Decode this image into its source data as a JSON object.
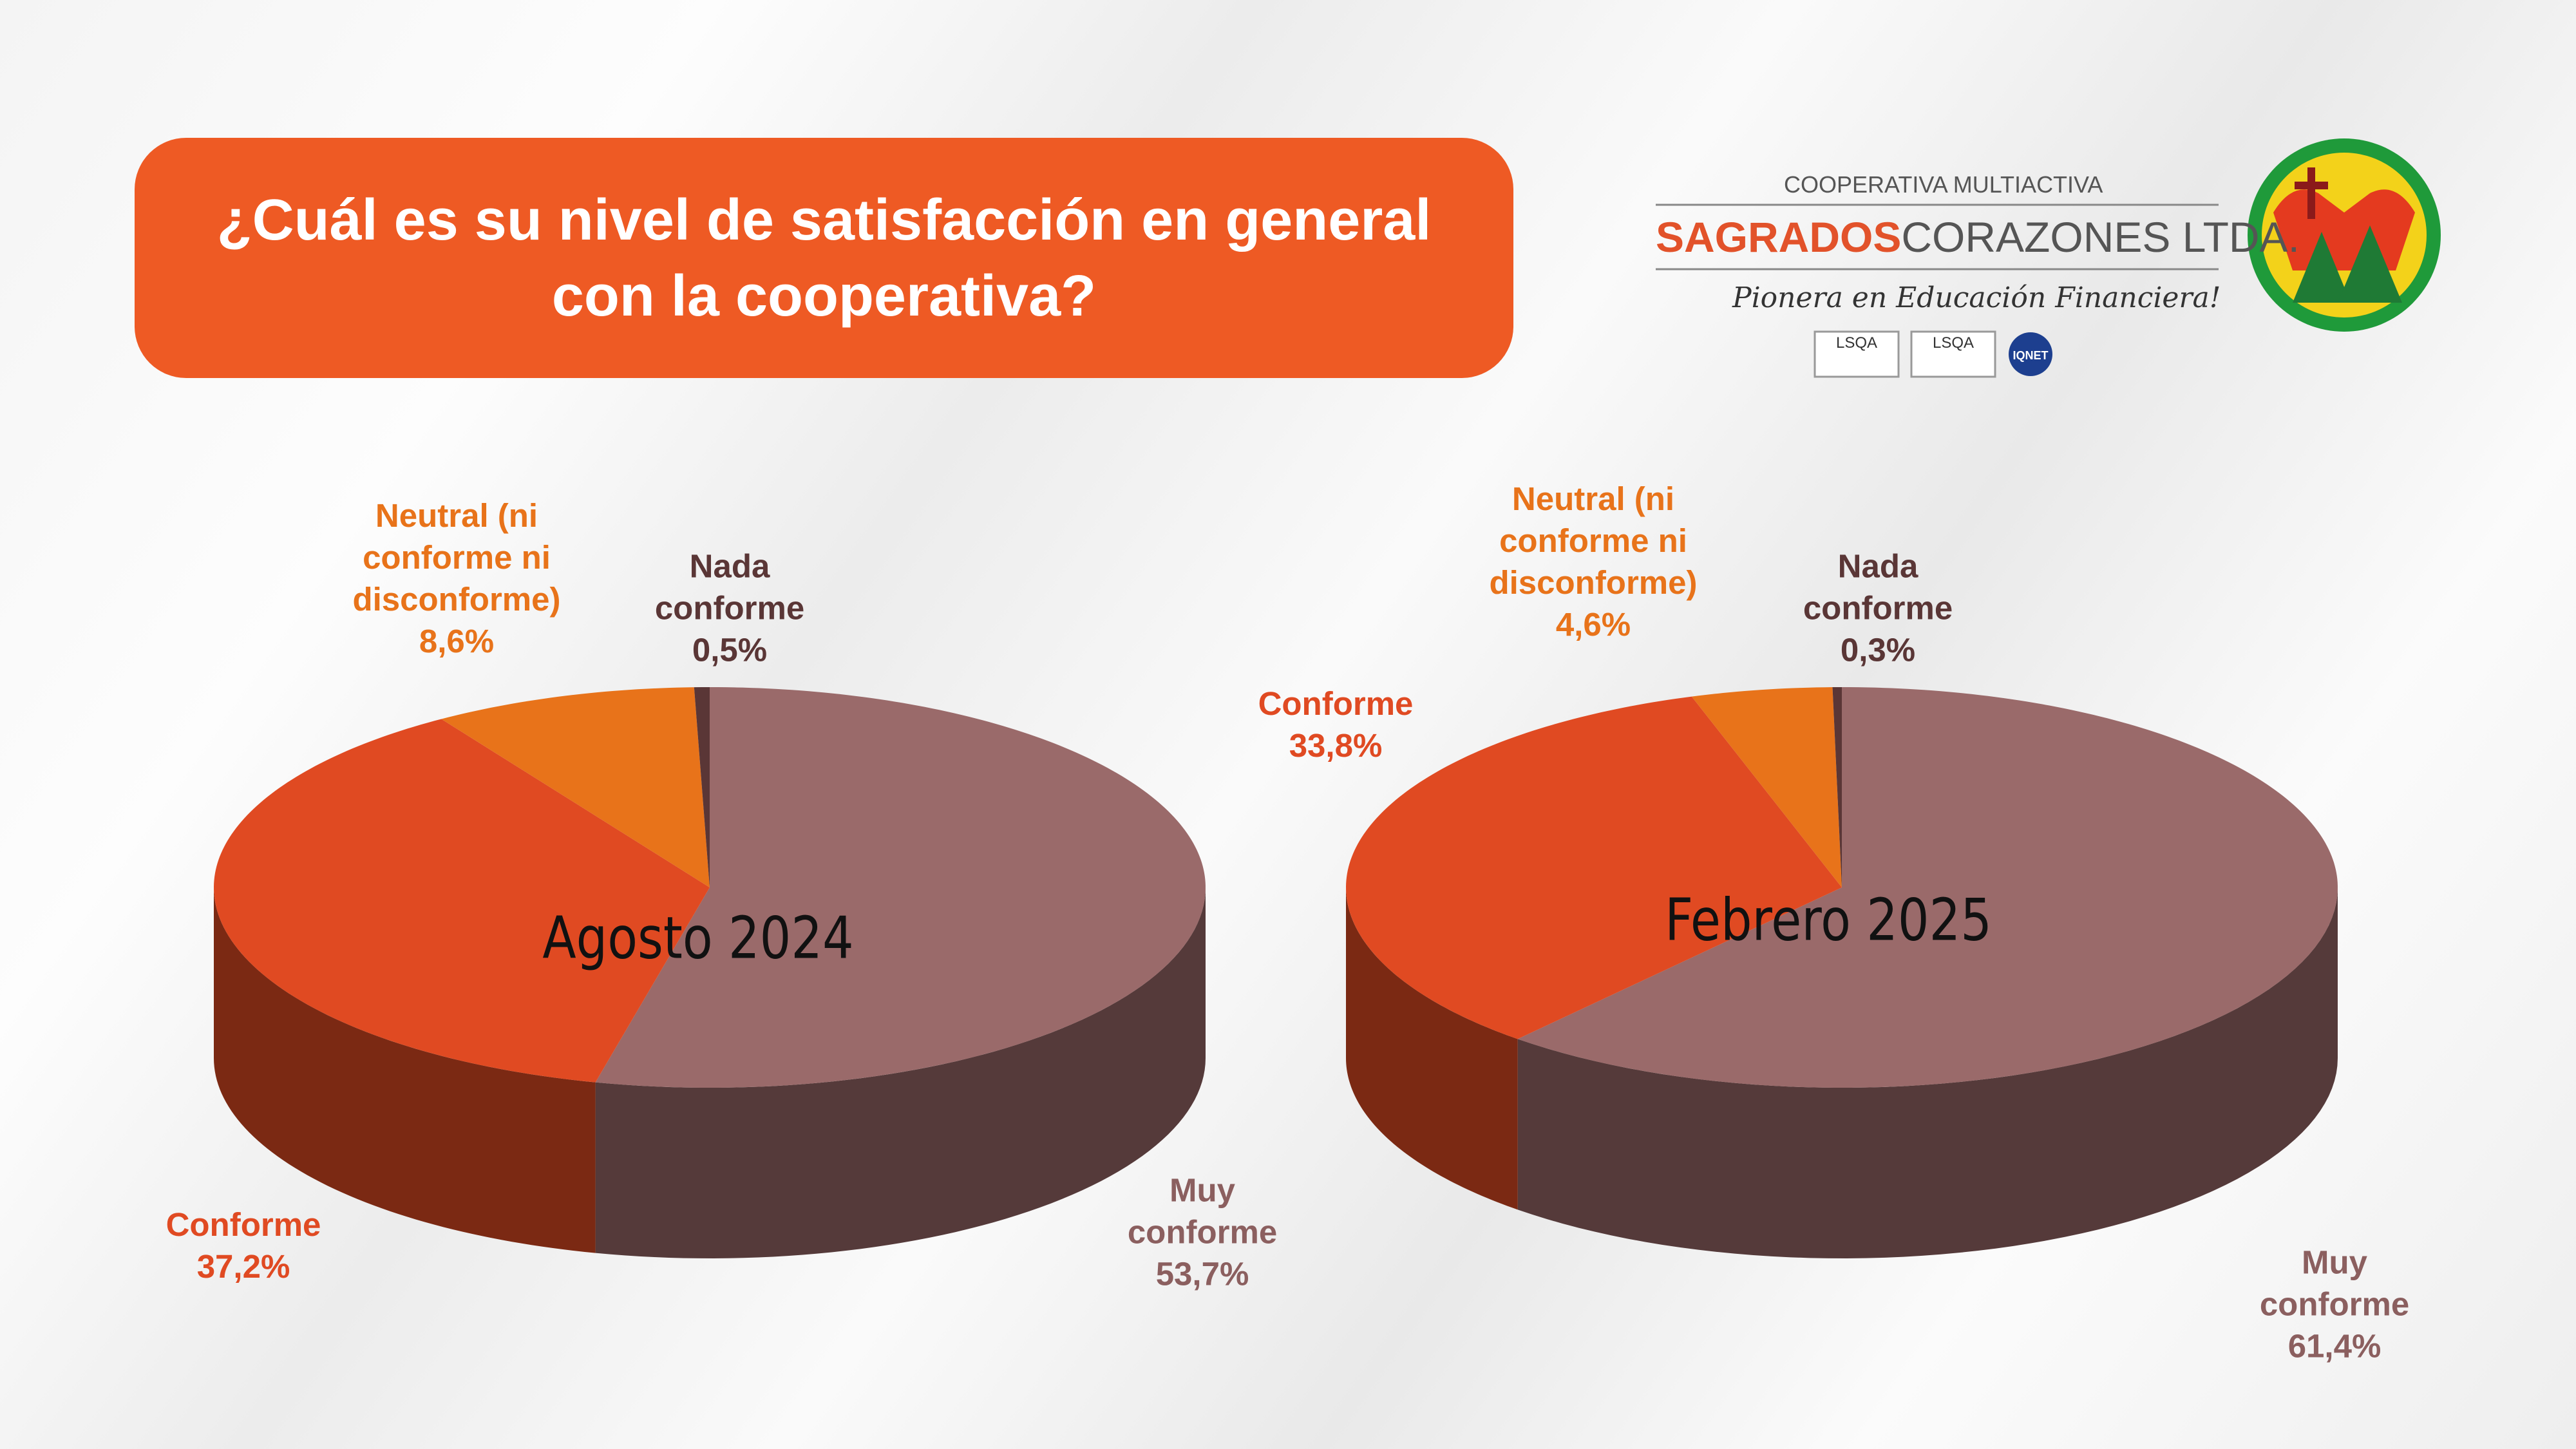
{
  "header": {
    "title": "¿Cuál es su nivel de satisfacción en general con la cooperativa?",
    "logo": {
      "top": "COOPERATIVA MULTIACTIVA",
      "name_bold": "SAGRADOS",
      "name_rest": "CORAZONES LTDA.",
      "slogan": "Pionera en Educación Financiera!",
      "badges": [
        "LSQA",
        "LSQA",
        "IQNET"
      ]
    }
  },
  "chart_data": [
    {
      "type": "pie",
      "title": "Agosto 2024",
      "categories": [
        "Muy conforme",
        "Conforme",
        "Neutral (ni conforme ni disconforme)",
        "Nada conforme"
      ],
      "values": [
        53.7,
        37.2,
        8.6,
        0.5
      ],
      "value_labels": [
        "53,7%",
        "37,2%",
        "8,6%",
        "0,5%"
      ],
      "colors": [
        "#9a6a6a",
        "#e04a22",
        "#e8731a",
        "#5a3636"
      ]
    },
    {
      "type": "pie",
      "title": "Febrero 2025",
      "categories": [
        "Muy conforme",
        "Conforme",
        "Neutral (ni conforme ni disconforme)",
        "Nada conforme"
      ],
      "values": [
        61.4,
        33.8,
        4.6,
        0.3
      ],
      "value_labels": [
        "61,4%",
        "33,8%",
        "4,6%",
        "0,3%"
      ],
      "colors": [
        "#9a6a6a",
        "#e04a22",
        "#e8731a",
        "#5a3636"
      ]
    }
  ]
}
